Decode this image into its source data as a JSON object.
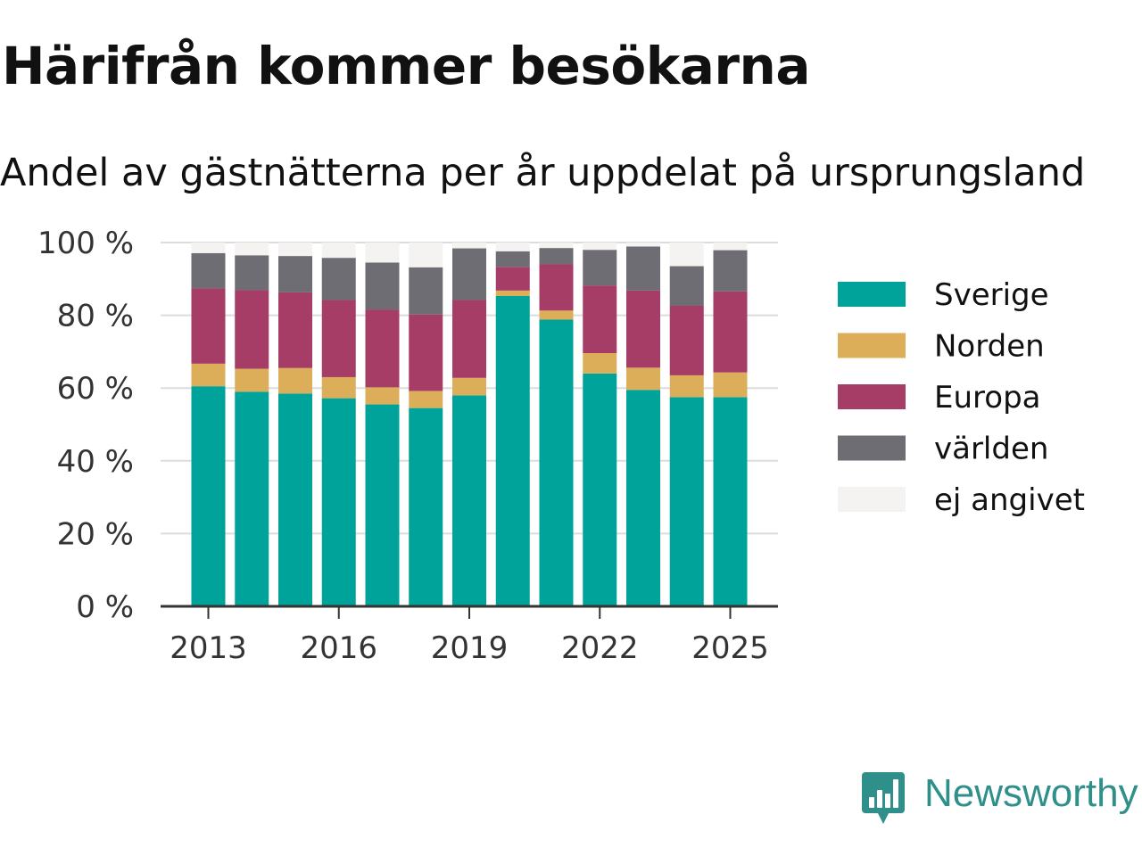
{
  "title": "Härifrån kommer besökarna",
  "subtitle": "Andel av gästnätterna per år uppdelat på ursprungsland",
  "brand": {
    "name": "Newsworthy",
    "logo_icon": "bar-chart-speech-bubble-icon",
    "color": "#2f8f8a"
  },
  "chart_data": {
    "type": "bar",
    "stacked": true,
    "categories": [
      "2013",
      "2014",
      "2015",
      "2016",
      "2017",
      "2018",
      "2019",
      "2020",
      "2021",
      "2022",
      "2023",
      "2024",
      "2025"
    ],
    "x_tick_labels": [
      "2013",
      "2016",
      "2019",
      "2022",
      "2025"
    ],
    "y_tick_labels": [
      "0 %",
      "20 %",
      "40 %",
      "60 %",
      "80 %",
      "100 %"
    ],
    "y_ticks": [
      0,
      20,
      40,
      60,
      80,
      100
    ],
    "ylim": [
      0,
      100
    ],
    "grid": true,
    "legend_position": "right",
    "series": [
      {
        "name": "Sverige",
        "color": "#00a39a",
        "values": [
          60.5,
          59,
          58.5,
          57.2,
          55.5,
          54.5,
          58,
          85.3,
          78.8,
          64,
          59.5,
          57.5,
          57.5
        ]
      },
      {
        "name": "Norden",
        "color": "#dcae5a",
        "values": [
          6.2,
          6.3,
          7,
          5.8,
          4.7,
          4.7,
          4.8,
          1.5,
          2.5,
          5.6,
          6.1,
          6,
          6.8
        ]
      },
      {
        "name": "Europa",
        "color": "#a63d67",
        "values": [
          20.7,
          21.6,
          20.8,
          21.2,
          21.4,
          21,
          21.4,
          6.5,
          12.7,
          18.6,
          21.2,
          19.1,
          22.3
        ]
      },
      {
        "name": "världen",
        "color": "#6e6d73",
        "values": [
          9.7,
          9.6,
          10,
          11.6,
          12.9,
          13,
          14.2,
          4.3,
          4.5,
          9.8,
          12.1,
          10.9,
          11.3
        ]
      },
      {
        "name": "ej angivet",
        "color": "#f5f3f1",
        "values": [
          2.9,
          3.5,
          3.7,
          4.2,
          5.5,
          6.8,
          1.6,
          2.4,
          1.5,
          2,
          1.1,
          6.5,
          2.1
        ]
      }
    ]
  }
}
